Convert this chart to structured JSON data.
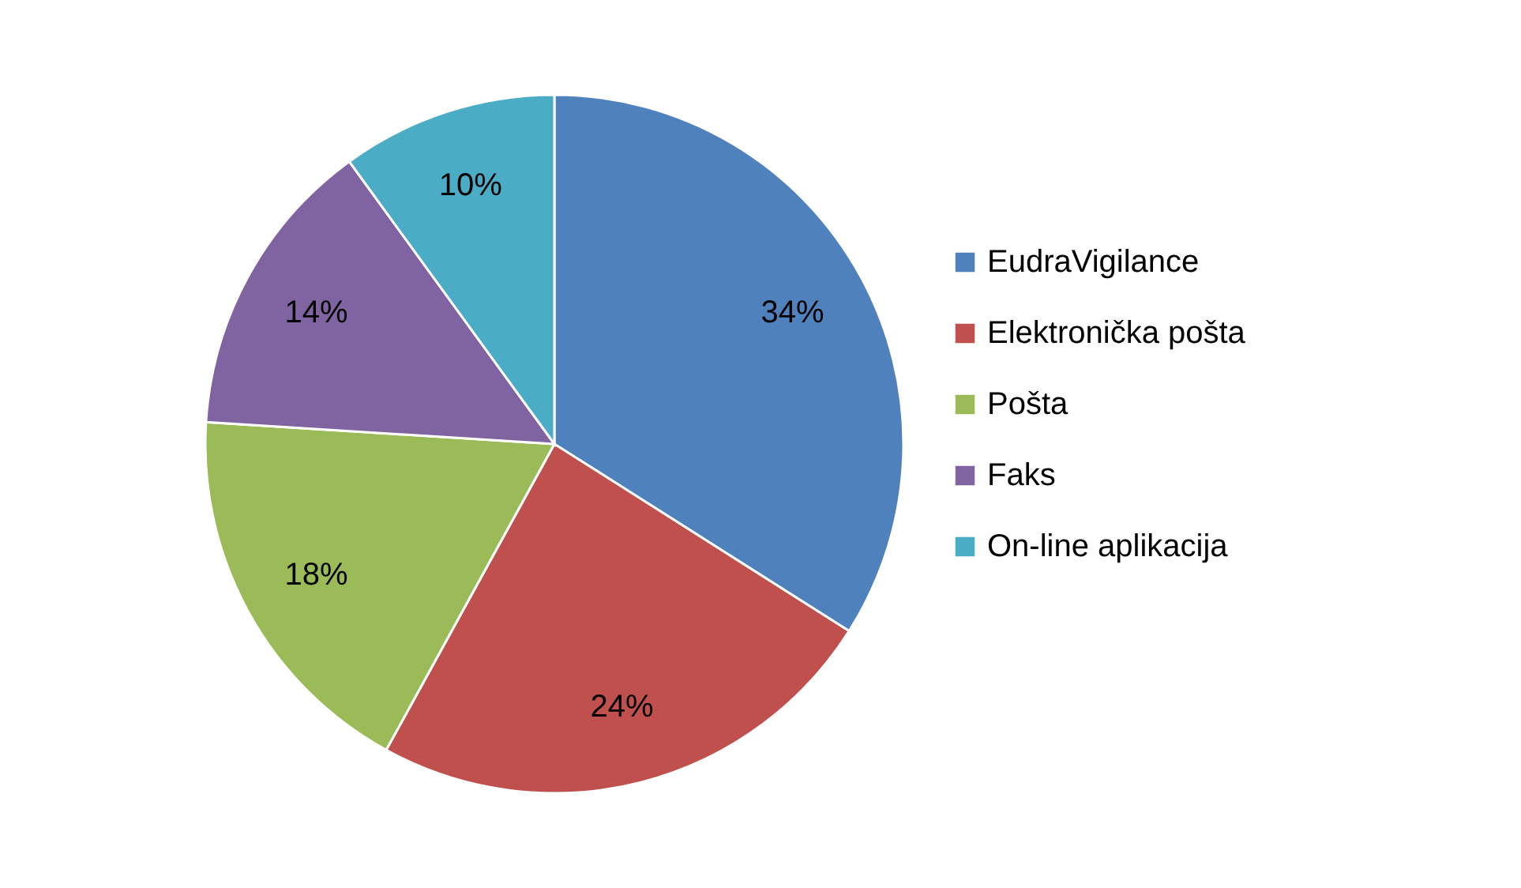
{
  "chart_data": {
    "type": "pie",
    "categories": [
      "EudraVigilance",
      "Elektronička pošta",
      "Pošta",
      "Faks",
      "On-line aplikacija"
    ],
    "values": [
      34,
      24,
      18,
      14,
      10
    ],
    "colors": [
      "#4f81bd",
      "#c0504d",
      "#9bbb59",
      "#8064a2",
      "#4bacc6"
    ],
    "value_labels": [
      "34%",
      "24%",
      "18%",
      "14%",
      "10%"
    ],
    "legend": "right"
  }
}
